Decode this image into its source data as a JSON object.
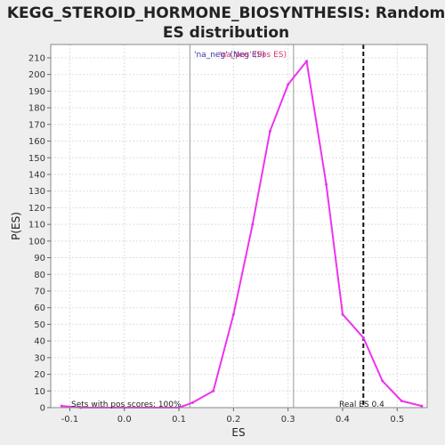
{
  "chart_data": {
    "type": "line",
    "title_line1": "KEGG_STEROID_HORMONE_BIOSYNTHESIS: Random",
    "title_line2": "ES distribution",
    "xlabel": "ES",
    "ylabel": "P(ES)",
    "xlim": [
      -0.135,
      0.555
    ],
    "ylim": [
      0,
      218
    ],
    "x_ticks": [
      -0.1,
      0.0,
      0.1,
      0.2,
      0.3,
      0.4,
      0.5
    ],
    "x_tick_labels": [
      "-0.1",
      "0.0",
      "0.1",
      "0.2",
      "0.3",
      "0.4",
      "0.5"
    ],
    "y_ticks": [
      0,
      10,
      20,
      30,
      40,
      50,
      60,
      70,
      80,
      90,
      100,
      110,
      120,
      130,
      140,
      150,
      160,
      170,
      180,
      190,
      200,
      210
    ],
    "y_tick_labels": [
      "0",
      "10",
      "20",
      "30",
      "40",
      "50",
      "60",
      "70",
      "80",
      "90",
      "100",
      "110",
      "120",
      "130",
      "140",
      "150",
      "160",
      "170",
      "180",
      "190",
      "200",
      "210"
    ],
    "grid": true,
    "series": [
      {
        "color": "#ee33ee",
        "x": [
          -0.115,
          -0.08,
          0.0,
          0.1,
          0.125,
          0.163,
          0.2,
          0.235,
          0.267,
          0.3,
          0.334,
          0.37,
          0.4,
          0.438,
          0.473,
          0.508,
          0.545
        ],
        "y": [
          1,
          0,
          0,
          0,
          3,
          10,
          56,
          110,
          166,
          194,
          208,
          134,
          56,
          42,
          16,
          4,
          1
        ]
      }
    ],
    "vertical_lines": [
      {
        "x": 0.12,
        "color": "#999999",
        "style": "solid"
      },
      {
        "x": 0.31,
        "color": "#999999",
        "style": "solid"
      },
      {
        "x": 0.438,
        "color": "#111111",
        "style": "dashed"
      }
    ],
    "annotations": {
      "na_neg": "'na_neg' (Neg ES)",
      "na_pos": "'na_pos' (Pos ES)",
      "sets_pos": "Sets with pos scores: 100%",
      "real_es": "Real ES 0.4"
    },
    "colors": {
      "na_neg": "#3333aa",
      "na_pos": "#dd3366",
      "plot_bg": "#ffffff",
      "grid": "#dddddd"
    }
  }
}
